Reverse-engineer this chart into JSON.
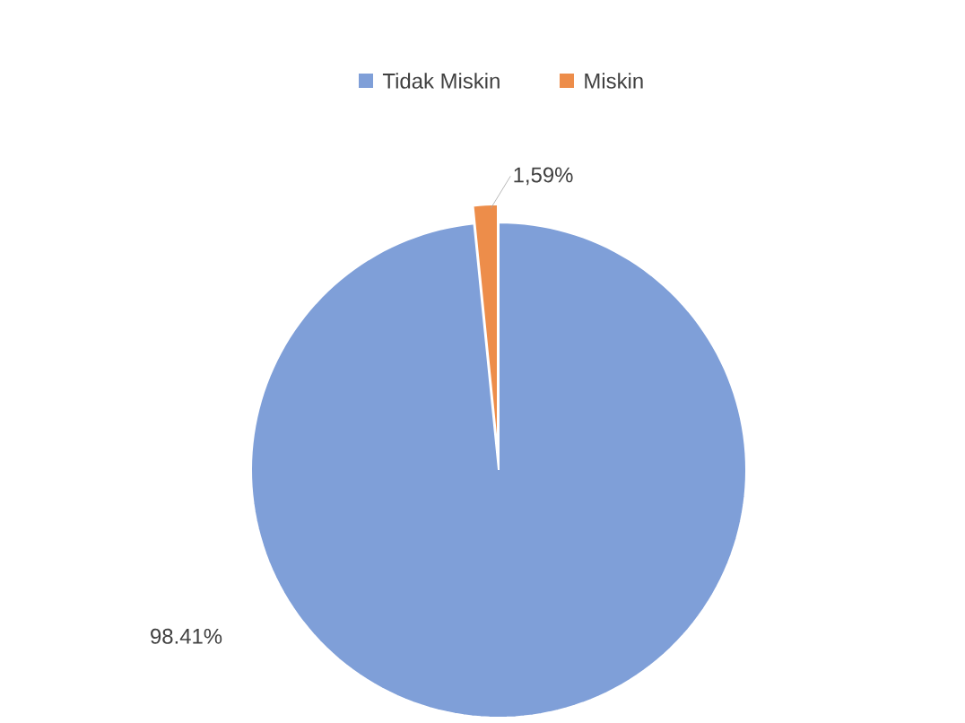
{
  "chart_data": {
    "type": "pie",
    "categories": [
      "Tidak Miskin",
      "Miskin"
    ],
    "values": [
      98.41,
      1.59
    ],
    "colors": [
      "#7f9fd8",
      "#ed8d4a"
    ],
    "value_labels": [
      "98.41%",
      "1,59%"
    ],
    "legend": "top"
  }
}
